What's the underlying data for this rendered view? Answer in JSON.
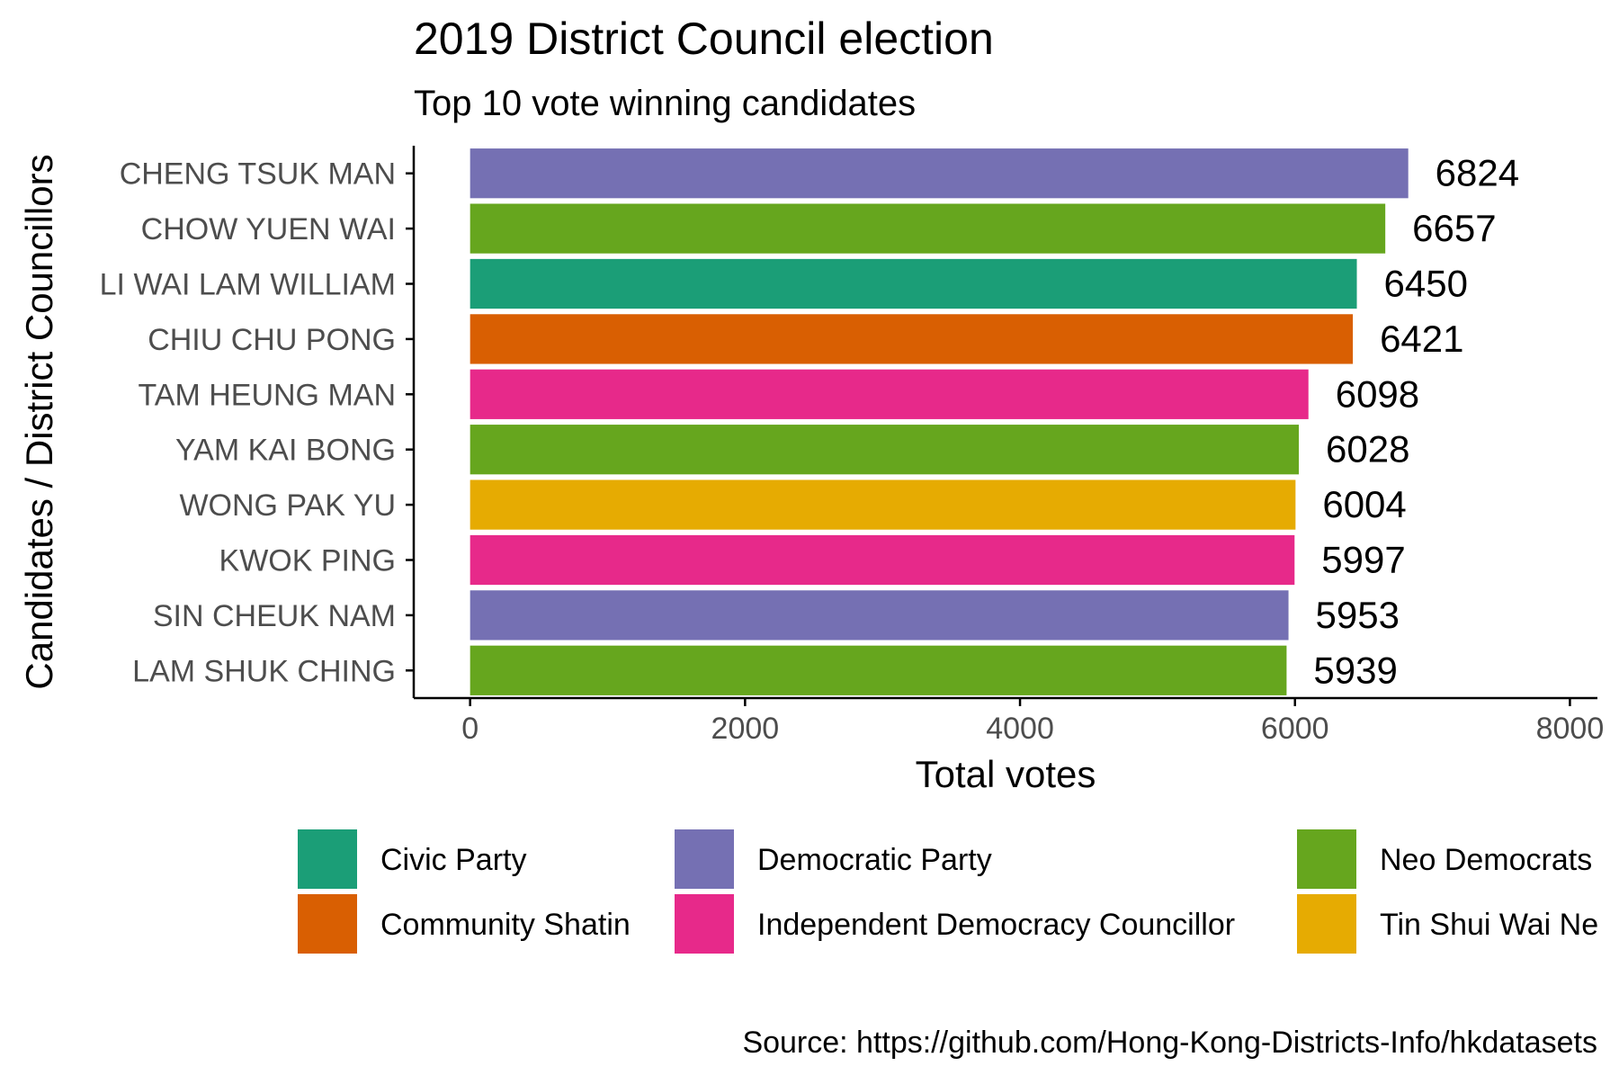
{
  "chart_data": {
    "type": "bar",
    "orientation": "horizontal",
    "title": "2019 District Council election",
    "subtitle": "Top 10 vote winning candidates",
    "xlabel": "Total votes",
    "ylabel": "Candidates / District Councillors",
    "caption": "Source: https://github.com/Hong-Kong-Districts-Info/hkdatasets",
    "xlim": [
      -410,
      8200
    ],
    "x_ticks": [
      0,
      2000,
      4000,
      6000,
      8000
    ],
    "grid": false,
    "legend_position": "bottom",
    "categories": [
      "CHENG TSUK MAN",
      "CHOW YUEN WAI",
      "LI WAI LAM WILLIAM",
      "CHIU CHU PONG",
      "TAM HEUNG MAN",
      "YAM KAI BONG",
      "WONG PAK YU",
      "KWOK PING",
      "SIN CHEUK NAM",
      "LAM SHUK CHING"
    ],
    "values": [
      6824,
      6657,
      6450,
      6421,
      6098,
      6028,
      6004,
      5997,
      5953,
      5939
    ],
    "party": [
      "Democratic Party",
      "Neo Democrats",
      "Civic Party",
      "Community Shatin",
      "Independent Democracy Councillor",
      "Neo Democrats",
      "Tin Shui Wai Ne",
      "Independent Democracy Councillor",
      "Democratic Party",
      "Neo Democrats"
    ],
    "legend": [
      {
        "name": "Civic Party",
        "color": "#1b9e77"
      },
      {
        "name": "Community Shatin",
        "color": "#d95f02"
      },
      {
        "name": "Democratic Party",
        "color": "#7570b3"
      },
      {
        "name": "Independent Democracy Councillor",
        "color": "#e7298a"
      },
      {
        "name": "Neo Democrats",
        "color": "#66a61e"
      },
      {
        "name": "Tin Shui Wai Ne",
        "color": "#e6ab02"
      }
    ]
  }
}
